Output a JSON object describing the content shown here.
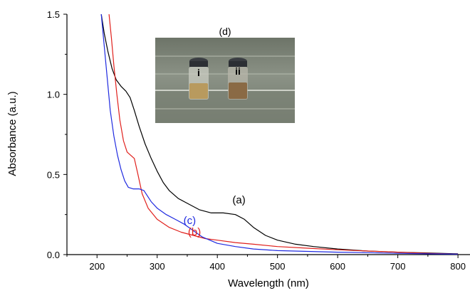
{
  "chart_data": {
    "type": "line",
    "xlabel": "Wavelength (nm)",
    "ylabel": "Absorbance (a.u.)",
    "xlim": [
      150,
      820
    ],
    "ylim": [
      0,
      1.5
    ],
    "xticks": [
      "200",
      "300",
      "400",
      "500",
      "600",
      "700",
      "800"
    ],
    "yticks": [
      "0.0",
      "0.5",
      "1.0",
      "1.5"
    ],
    "grid": false,
    "series": [
      {
        "name": "(a)",
        "color": "#000000",
        "x": [
          207,
          212,
          218,
          225,
          232,
          240,
          248,
          255,
          262,
          270,
          280,
          290,
          300,
          310,
          320,
          335,
          350,
          370,
          390,
          410,
          430,
          445,
          460,
          480,
          500,
          530,
          560,
          600,
          650,
          700,
          750,
          800
        ],
        "y": [
          1.5,
          1.38,
          1.27,
          1.16,
          1.09,
          1.05,
          1.02,
          0.98,
          0.9,
          0.8,
          0.69,
          0.6,
          0.52,
          0.45,
          0.4,
          0.35,
          0.32,
          0.28,
          0.26,
          0.26,
          0.25,
          0.22,
          0.17,
          0.12,
          0.09,
          0.065,
          0.05,
          0.035,
          0.022,
          0.015,
          0.01,
          0.005
        ]
      },
      {
        "name": "(b)",
        "color": "#e0201c",
        "x": [
          220,
          224,
          228,
          233,
          238,
          244,
          250,
          256,
          262,
          268,
          275,
          285,
          300,
          320,
          340,
          360,
          380,
          400,
          430,
          460,
          500,
          550,
          600,
          650,
          700,
          750,
          800
        ],
        "y": [
          1.5,
          1.35,
          1.18,
          1.0,
          0.84,
          0.71,
          0.64,
          0.62,
          0.6,
          0.5,
          0.38,
          0.29,
          0.22,
          0.17,
          0.14,
          0.12,
          0.1,
          0.09,
          0.075,
          0.065,
          0.05,
          0.04,
          0.03,
          0.022,
          0.015,
          0.008,
          0.003
        ]
      },
      {
        "name": "(c)",
        "color": "#1f2ae0",
        "x": [
          207,
          212,
          217,
          222,
          228,
          234,
          240,
          246,
          252,
          260,
          270,
          278,
          283,
          290,
          300,
          315,
          330,
          345,
          360,
          375,
          400,
          430,
          460,
          500,
          550,
          600,
          650,
          700,
          750,
          800
        ],
        "y": [
          1.5,
          1.3,
          1.1,
          0.9,
          0.74,
          0.62,
          0.53,
          0.46,
          0.42,
          0.41,
          0.41,
          0.4,
          0.37,
          0.33,
          0.29,
          0.25,
          0.22,
          0.19,
          0.15,
          0.11,
          0.07,
          0.05,
          0.035,
          0.025,
          0.02,
          0.015,
          0.012,
          0.008,
          0.005,
          0.003
        ]
      }
    ],
    "annotations": [
      {
        "text": "(a)",
        "x": 436,
        "y": 0.32,
        "color": "#000000"
      },
      {
        "text": "(b)",
        "x": 362,
        "y": 0.12,
        "color": "#e0201c"
      },
      {
        "text": "(c)",
        "x": 354,
        "y": 0.19,
        "color": "#1f2ae0"
      }
    ],
    "inset": {
      "label": "(d)",
      "vials": [
        {
          "label": "i",
          "liquid_color": "#b89a5e"
        },
        {
          "label": "ii",
          "liquid_color": "#8a6a45"
        }
      ]
    }
  }
}
